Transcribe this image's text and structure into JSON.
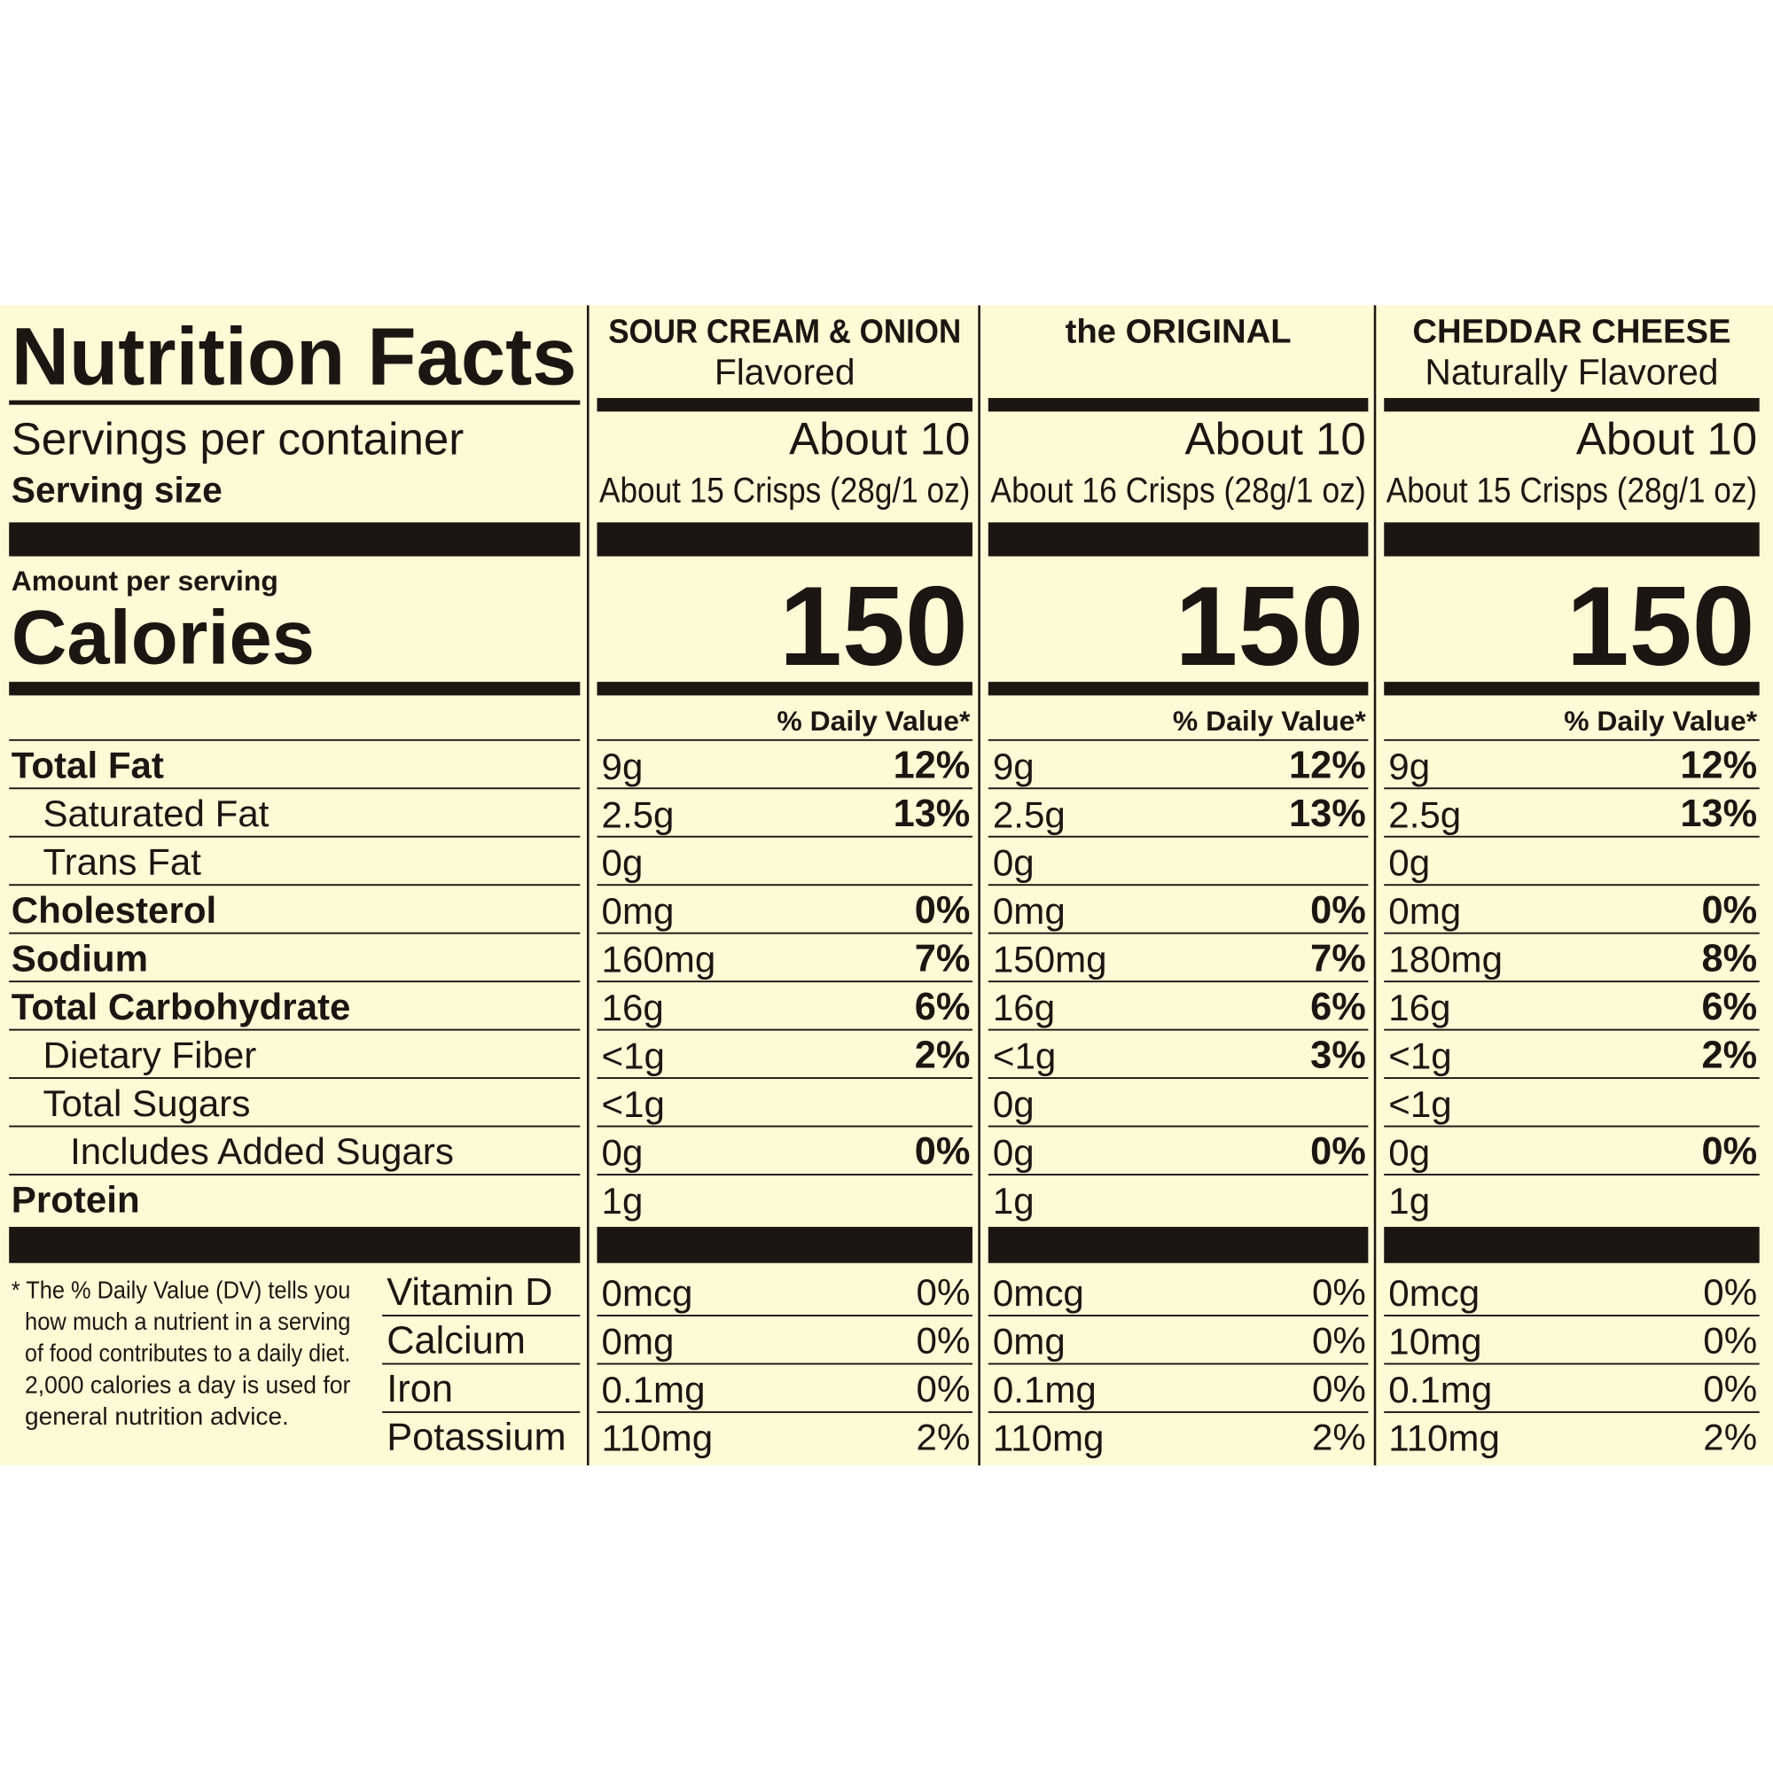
{
  "title": "Nutrition Facts",
  "servings_label": "Servings per container",
  "serving_size_label": "Serving size",
  "amount_per_serving": "Amount per serving",
  "calories_label": "Calories",
  "daily_value_header": "% Daily Value*",
  "nutrients": [
    "Total Fat",
    "Saturated Fat",
    "Trans Fat",
    "Cholesterol",
    "Sodium",
    "Total Carbohydrate",
    "Dietary Fiber",
    "Total Sugars",
    "Includes Added Sugars",
    "Protein"
  ],
  "vitamins": [
    "Vitamin D",
    "Calcium",
    "Iron",
    "Potassium"
  ],
  "footnote": [
    "* The % Daily Value (DV) tells you",
    "how much a nutrient in a serving",
    "of food contributes to a daily diet.",
    "2,000 calories a day is used for",
    "general nutrition advice."
  ],
  "products": [
    {
      "name": "SOUR CREAM & ONION",
      "subtitle": "Flavored",
      "servings": "About 10",
      "serving_size": "About 15 Crisps (28g/1 oz)",
      "calories": 150,
      "nutrients": [
        {
          "amount": "9g",
          "dv": "12%"
        },
        {
          "amount": "2.5g",
          "dv": "13%"
        },
        {
          "amount": "0g"
        },
        {
          "amount": "0mg",
          "dv": "0%"
        },
        {
          "amount": "160mg",
          "dv": "7%"
        },
        {
          "amount": "16g",
          "dv": "6%"
        },
        {
          "amount": "<1g",
          "dv": "2%"
        },
        {
          "amount": "<1g"
        },
        {
          "amount": "0g",
          "dv": "0%"
        },
        {
          "amount": "1g"
        }
      ],
      "vitamins": [
        {
          "amount": "0mcg",
          "dv": "0%"
        },
        {
          "amount": "0mg",
          "dv": "0%"
        },
        {
          "amount": "0.1mg",
          "dv": "0%"
        },
        {
          "amount": "110mg",
          "dv": "2%"
        }
      ]
    },
    {
      "name": "the ORIGINAL",
      "servings": "About 10",
      "serving_size": "About 16 Crisps (28g/1 oz)",
      "calories": 150,
      "nutrients": [
        {
          "amount": "9g",
          "dv": "12%"
        },
        {
          "amount": "2.5g",
          "dv": "13%"
        },
        {
          "amount": "0g"
        },
        {
          "amount": "0mg",
          "dv": "0%"
        },
        {
          "amount": "150mg",
          "dv": "7%"
        },
        {
          "amount": "16g",
          "dv": "6%"
        },
        {
          "amount": "<1g",
          "dv": "3%"
        },
        {
          "amount": "0g"
        },
        {
          "amount": "0g",
          "dv": "0%"
        },
        {
          "amount": "1g"
        }
      ],
      "vitamins": [
        {
          "amount": "0mcg",
          "dv": "0%"
        },
        {
          "amount": "0mg",
          "dv": "0%"
        },
        {
          "amount": "0.1mg",
          "dv": "0%"
        },
        {
          "amount": "110mg",
          "dv": "2%"
        }
      ]
    },
    {
      "name": "CHEDDAR CHEESE",
      "subtitle": "Naturally Flavored",
      "servings": "About 10",
      "serving_size": "About 15 Crisps (28g/1 oz)",
      "calories": 150,
      "nutrients": [
        {
          "amount": "9g",
          "dv": "12%"
        },
        {
          "amount": "2.5g",
          "dv": "13%"
        },
        {
          "amount": "0g"
        },
        {
          "amount": "0mg",
          "dv": "0%"
        },
        {
          "amount": "180mg",
          "dv": "8%"
        },
        {
          "amount": "16g",
          "dv": "6%"
        },
        {
          "amount": "<1g",
          "dv": "2%"
        },
        {
          "amount": "<1g"
        },
        {
          "amount": "0g",
          "dv": "0%"
        },
        {
          "amount": "1g"
        }
      ],
      "vitamins": [
        {
          "amount": "0mcg",
          "dv": "0%"
        },
        {
          "amount": "10mg",
          "dv": "0%"
        },
        {
          "amount": "0.1mg",
          "dv": "0%"
        },
        {
          "amount": "110mg",
          "dv": "2%"
        }
      ]
    }
  ]
}
